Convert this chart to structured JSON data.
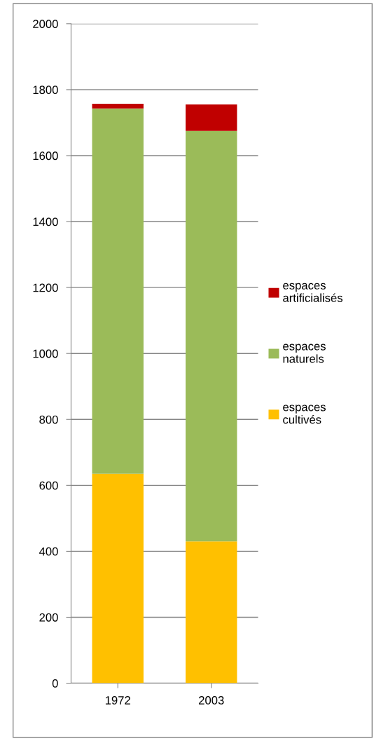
{
  "chart_data": {
    "type": "bar",
    "stacked": true,
    "categories": [
      "1972",
      "2003"
    ],
    "series": [
      {
        "name": "espaces cultivés",
        "color": "#ffc000",
        "values": [
          635,
          430
        ]
      },
      {
        "name": "espaces naturels",
        "color": "#9bbb59",
        "values": [
          1108,
          1245
        ]
      },
      {
        "name": "espaces artificialisés",
        "color": "#c00000",
        "values": [
          14,
          80
        ]
      }
    ],
    "ylim": [
      0,
      2000
    ],
    "yticks": [
      0,
      200,
      400,
      600,
      800,
      1000,
      1200,
      1400,
      1600,
      1800,
      2000
    ],
    "grid": "y",
    "legend": "right"
  }
}
